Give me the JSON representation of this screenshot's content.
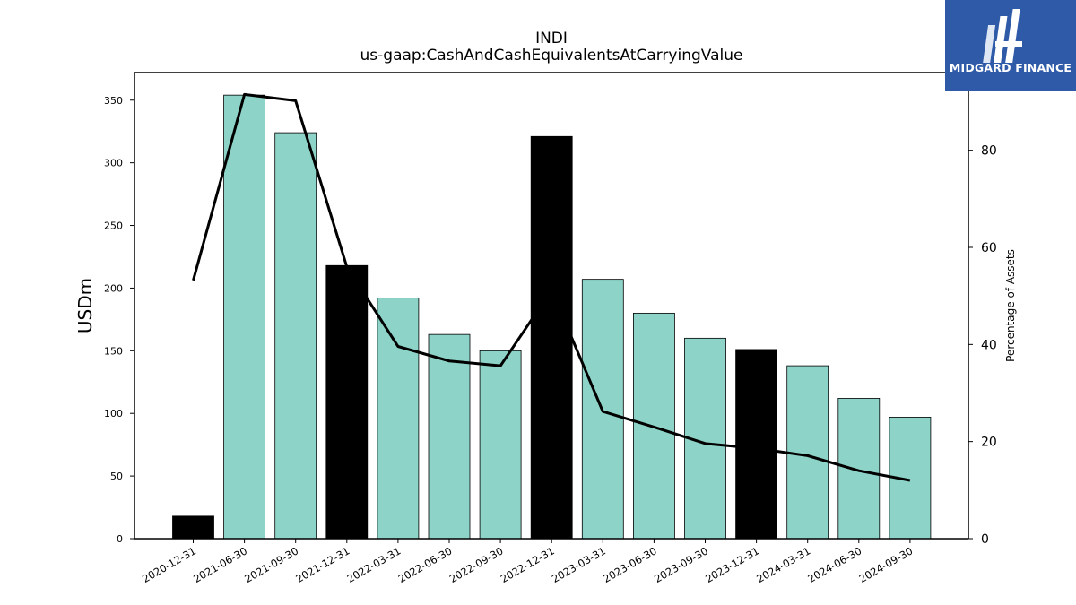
{
  "brand": {
    "name": "MIDGARD FINANCE",
    "color": "#2f5aa8",
    "icon": "midgard-logo-icon"
  },
  "chart_data": {
    "type": "bar",
    "title": "INDI",
    "subtitle": "us-gaap:CashAndCashEquivalentsAtCarryingValue",
    "ylabel": "USDm",
    "y2label": "Percentage of Assets",
    "ylim": [
      0,
      372
    ],
    "y2lim": [
      0,
      96
    ],
    "yticks": [
      0,
      50,
      100,
      150,
      200,
      250,
      300,
      350
    ],
    "y2ticks": [
      0,
      20,
      40,
      60,
      80
    ],
    "categories": [
      "2020-12-31",
      "2021-06-30",
      "2021-09-30",
      "2021-12-31",
      "2022-03-31",
      "2022-06-30",
      "2022-09-30",
      "2022-12-31",
      "2023-03-31",
      "2023-06-30",
      "2023-09-30",
      "2023-12-31",
      "2024-03-31",
      "2024-06-30",
      "2024-09-30"
    ],
    "series": [
      {
        "type": "bar",
        "axis": "left",
        "values": [
          18,
          354,
          324,
          218,
          192,
          163,
          150,
          321,
          207,
          180,
          160,
          151,
          138,
          112,
          97
        ],
        "colors": [
          "#000000",
          "#8dd3c7",
          "#8dd3c7",
          "#000000",
          "#8dd3c7",
          "#8dd3c7",
          "#8dd3c7",
          "#000000",
          "#8dd3c7",
          "#8dd3c7",
          "#8dd3c7",
          "#000000",
          "#8dd3c7",
          "#8dd3c7",
          "#8dd3c7"
        ]
      },
      {
        "type": "line",
        "axis": "right",
        "color": "#000000",
        "values": [
          53.2,
          91.5,
          90.2,
          56.0,
          39.6,
          36.6,
          35.6,
          51.2,
          26.2,
          23.0,
          19.6,
          18.6,
          17.1,
          14.0,
          12.0
        ]
      }
    ],
    "grid": false,
    "legend": "none"
  }
}
